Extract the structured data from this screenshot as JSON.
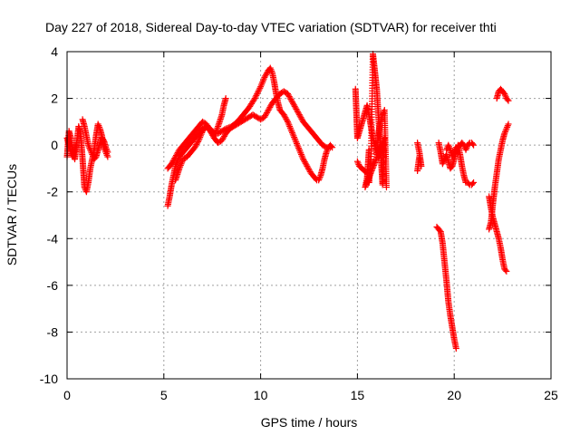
{
  "chart_data": {
    "type": "scatter",
    "title": "Day 227 of 2018, Sidereal Day-to-day VTEC variation (SDTVAR) for receiver thti",
    "xlabel": "GPS time / hours",
    "ylabel": "SDTVAR / TECUs",
    "xlim": [
      0,
      25
    ],
    "ylim": [
      -10,
      4
    ],
    "xticks": [
      0,
      5,
      10,
      15,
      20,
      25
    ],
    "yticks": [
      -10,
      -8,
      -6,
      -4,
      -2,
      0,
      2,
      4
    ],
    "xtick_labels": [
      "0",
      "5",
      "10",
      "15",
      "20",
      "25"
    ],
    "ytick_labels": [
      "-10",
      "-8",
      "-6",
      "-4",
      "-2",
      "0",
      "2",
      "4"
    ],
    "grid": true,
    "marker": "+",
    "color": "#ff0000",
    "segments": [
      {
        "x": [
          0.0,
          0.1,
          0.2,
          0.3,
          0.4,
          0.5,
          0.6,
          0.7,
          0.8,
          0.9,
          1.0,
          1.1,
          1.2,
          1.3,
          1.4,
          1.5,
          1.6,
          1.7,
          1.8,
          1.9,
          2.0,
          2.1
        ],
        "y": [
          -0.5,
          0.6,
          0.3,
          -0.3,
          -0.6,
          0.1,
          0.8,
          0.5,
          -0.6,
          -1.8,
          -2.0,
          -1.6,
          -1.0,
          -0.6,
          -0.2,
          0.4,
          0.9,
          0.7,
          0.4,
          -0.1,
          -0.3,
          -0.5
        ]
      },
      {
        "x": [
          0.8,
          0.9,
          1.0,
          1.1,
          1.2,
          1.3,
          1.4,
          1.5,
          1.6,
          1.7,
          1.8,
          1.9,
          2.0,
          2.1
        ],
        "y": [
          1.1,
          0.8,
          0.4,
          0.0,
          -0.2,
          -0.4,
          -0.6,
          -0.5,
          -0.2,
          0.1,
          0.3,
          0.2,
          -0.1,
          -0.3
        ]
      },
      {
        "x": [
          0.0,
          0.1,
          0.2,
          0.3,
          0.4,
          0.5
        ],
        "y": [
          0.3,
          0.0,
          -0.3,
          -0.5,
          -0.2,
          0.1
        ]
      },
      {
        "x": [
          5.2,
          5.3,
          5.4,
          5.5,
          5.6,
          5.7,
          5.8,
          5.9,
          6.0,
          6.2,
          6.4,
          6.6,
          6.8,
          7.0,
          7.2,
          7.4,
          7.6,
          7.8,
          8.0,
          8.2,
          8.5,
          8.8,
          9.1,
          9.4,
          9.7,
          10.0,
          10.2,
          10.4,
          10.5,
          10.6,
          10.7,
          10.8,
          10.9,
          11.0,
          11.2,
          11.4,
          11.6,
          11.8,
          12.0,
          12.2,
          12.4,
          12.6,
          12.8,
          12.9,
          13.0,
          13.1,
          13.2,
          13.3,
          13.4,
          13.5,
          13.6,
          13.7
        ],
        "y": [
          -2.6,
          -2.2,
          -1.7,
          -1.3,
          -0.9,
          -0.7,
          -0.5,
          -0.4,
          -0.3,
          -0.1,
          0.1,
          0.3,
          0.5,
          0.7,
          0.8,
          0.7,
          0.5,
          0.5,
          0.6,
          0.7,
          0.8,
          1.0,
          1.3,
          1.6,
          2.0,
          2.5,
          2.9,
          3.2,
          3.3,
          3.1,
          2.7,
          2.2,
          1.8,
          1.5,
          1.3,
          1.0,
          0.6,
          0.2,
          -0.2,
          -0.6,
          -0.9,
          -1.2,
          -1.4,
          -1.5,
          -1.5,
          -1.3,
          -1.0,
          -0.6,
          -0.3,
          -0.1,
          0.0,
          -0.1
        ]
      },
      {
        "x": [
          5.2,
          5.4,
          5.6,
          5.8,
          6.0,
          6.2,
          6.4,
          6.6,
          6.8,
          7.0,
          7.2,
          7.4,
          7.6,
          7.8,
          8.0,
          8.2,
          8.4,
          8.6,
          8.8,
          9.0,
          9.2,
          9.4,
          9.6,
          9.8,
          10.0,
          10.2,
          10.4,
          10.6,
          10.8,
          11.0,
          11.2,
          11.4,
          11.6,
          11.8,
          12.0,
          12.2,
          12.4,
          12.6,
          12.8,
          13.0,
          13.2,
          13.4,
          13.6
        ],
        "y": [
          -1.0,
          -0.8,
          -0.5,
          -0.2,
          0.0,
          0.2,
          0.4,
          0.6,
          0.8,
          1.0,
          0.9,
          0.6,
          0.3,
          0.1,
          0.2,
          0.5,
          0.7,
          0.8,
          0.9,
          1.0,
          1.1,
          1.2,
          1.3,
          1.2,
          1.1,
          1.2,
          1.5,
          1.8,
          2.0,
          2.2,
          2.3,
          2.2,
          1.9,
          1.6,
          1.3,
          1.0,
          0.8,
          0.6,
          0.4,
          0.2,
          0.0,
          -0.1,
          -0.1
        ]
      },
      {
        "x": [
          5.6,
          5.8,
          6.0,
          6.2,
          6.4,
          6.6,
          6.8,
          7.0,
          7.2,
          7.4,
          7.6,
          7.8,
          8.0,
          8.1,
          8.2
        ],
        "y": [
          -1.5,
          -1.0,
          -0.6,
          -0.5,
          -0.3,
          -0.1,
          0.2,
          0.6,
          0.8,
          0.6,
          0.4,
          0.8,
          1.3,
          1.7,
          2.0
        ]
      },
      {
        "x": [
          14.9,
          15.0,
          15.5,
          15.6,
          15.7,
          15.8,
          15.9,
          16.0,
          16.1,
          16.2,
          16.3,
          16.4,
          16.5
        ],
        "y": [
          2.4,
          0.3,
          1.7,
          1.3,
          0.8,
          0.3,
          0.0,
          -0.4,
          0.6,
          1.0,
          1.3,
          1.5,
          -1.8
        ]
      },
      {
        "x": [
          15.0,
          15.1,
          15.5,
          15.6,
          15.7,
          15.8,
          16.0,
          16.2,
          16.3,
          16.4,
          15.4,
          15.5,
          15.6
        ],
        "y": [
          -0.7,
          -0.9,
          -1.2,
          -1.6,
          -0.6,
          3.9,
          2.4,
          -0.3,
          -1.7,
          0.3,
          -1.8,
          -1.4,
          -0.2
        ]
      },
      {
        "x": [
          18.1,
          18.2,
          18.3,
          18.2,
          18.1
        ],
        "y": [
          0.1,
          -0.3,
          -0.9,
          -0.5,
          -1.1
        ]
      },
      {
        "x": [
          19.1,
          19.2,
          19.3,
          19.4,
          19.5,
          19.6,
          19.7,
          19.8,
          19.9,
          20.0,
          20.1
        ],
        "y": [
          -3.5,
          -3.6,
          -3.7,
          -4.2,
          -5.0,
          -5.8,
          -6.7,
          -7.3,
          -7.8,
          -8.3,
          -8.7
        ]
      },
      {
        "x": [
          19.2,
          19.3,
          19.4,
          19.5,
          19.6,
          19.7,
          19.8,
          19.9,
          20.0,
          20.1,
          20.2,
          20.3,
          20.4,
          20.5,
          20.6,
          20.7,
          20.8,
          20.9,
          21.0
        ],
        "y": [
          0.1,
          -0.3,
          -0.8,
          -0.6,
          -0.4,
          -0.7,
          -1.0,
          -0.9,
          -0.6,
          -0.3,
          0.0,
          -0.4,
          -0.9,
          -1.3,
          -1.6,
          -1.6,
          -1.7,
          -1.7,
          -1.6
        ]
      },
      {
        "x": [
          19.6,
          19.7,
          19.8,
          19.9,
          20.0,
          20.1,
          20.2,
          20.3,
          20.4,
          20.5,
          20.6,
          20.7,
          20.8,
          20.9,
          21.0
        ],
        "y": [
          -0.2,
          0.0,
          -0.2,
          -0.5,
          -0.3,
          -0.1,
          -0.1,
          0.0,
          0.1,
          0.0,
          -0.2,
          0.0,
          0.1,
          0.1,
          0.0
        ]
      },
      {
        "x": [
          21.8,
          21.9,
          22.0,
          22.1,
          22.2,
          22.3,
          22.4,
          22.5,
          22.6,
          22.7
        ],
        "y": [
          -2.2,
          -2.7,
          -3.1,
          -3.4,
          -3.7,
          -4.0,
          -4.4,
          -4.9,
          -5.3,
          -5.4
        ]
      },
      {
        "x": [
          21.8,
          21.9,
          22.0,
          22.1,
          22.2,
          22.3,
          22.4,
          22.5,
          22.6,
          22.7,
          22.8
        ],
        "y": [
          -3.6,
          -3.3,
          -2.5,
          -1.8,
          -1.2,
          -0.6,
          -0.2,
          0.2,
          0.5,
          0.7,
          0.9
        ]
      },
      {
        "x": [
          22.2,
          22.3,
          22.4,
          22.5,
          22.6,
          22.7,
          22.8
        ],
        "y": [
          2.0,
          2.3,
          2.4,
          2.3,
          2.2,
          2.0,
          1.9
        ]
      }
    ]
  }
}
